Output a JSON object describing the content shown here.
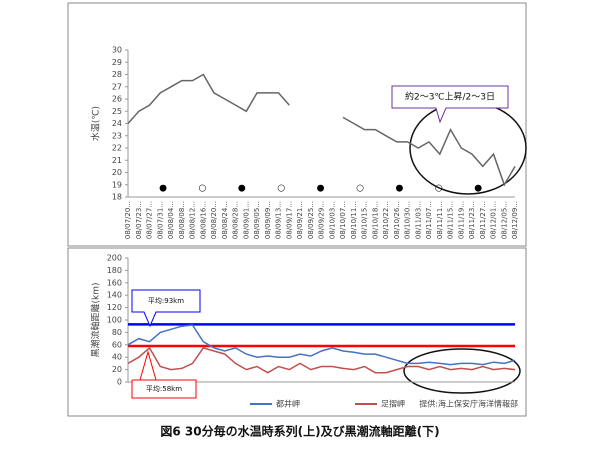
{
  "chart_data": [
    {
      "type": "line",
      "y_label": "水温(℃)",
      "categories": [
        "08/07/20...",
        "08/07/23...",
        "08/07/27...",
        "08/07/31...",
        "08/08/04...",
        "08/08/08...",
        "08/08/12...",
        "08/08/16...",
        "08/08/20...",
        "08/08/24...",
        "08/08/28...",
        "08/09/01...",
        "08/09/05...",
        "08/09/09...",
        "08/09/13...",
        "08/09/17...",
        "08/09/21...",
        "08/09/25...",
        "08/09/29...",
        "08/10/03...",
        "08/10/07...",
        "08/10/11...",
        "08/10/15...",
        "08/10/18...",
        "08/10/22...",
        "08/10/26...",
        "08/10/30...",
        "08/11/03...",
        "08/11/07...",
        "08/11/11...",
        "08/11/15...",
        "08/11/19...",
        "08/11/23...",
        "08/11/27...",
        "08/12/01...",
        "08/12/05...",
        "08/12/09..."
      ],
      "series": [
        {
          "color": "#666666",
          "values": [
            24,
            25,
            25.5,
            26.5,
            27,
            27.5,
            27.5,
            28,
            26.5,
            26,
            25.5,
            25,
            26.5,
            26.5,
            26.5,
            25.5,
            null,
            null,
            null,
            null,
            24.5,
            24,
            23.5,
            23.5,
            23,
            22.5,
            22.5,
            22,
            22.5,
            21.5,
            23.5,
            22,
            21.5,
            20.5,
            21.5,
            19,
            20.5
          ]
        }
      ],
      "ylim": [
        18,
        30
      ],
      "yticks": [
        18,
        19,
        20,
        21,
        22,
        23,
        24,
        25,
        26,
        27,
        28,
        29,
        30
      ],
      "moon_markers": [
        "●",
        "○",
        "●",
        "○",
        "●",
        "○",
        "●",
        "○",
        "●"
      ],
      "annotation": "約2～3℃上昇/2～3日"
    },
    {
      "type": "line",
      "y_label": "黒潮流軸距離(km)",
      "series": [
        {
          "name": "都井岬",
          "color": "#4472c4",
          "values": [
            60,
            70,
            65,
            80,
            85,
            90,
            92,
            65,
            55,
            50,
            55,
            45,
            40,
            42,
            40,
            40,
            45,
            42,
            50,
            55,
            50,
            48,
            45,
            45,
            40,
            35,
            30,
            30,
            32,
            30,
            28,
            30,
            30,
            28,
            32,
            30,
            35
          ]
        },
        {
          "name": "足摺岬",
          "color": "#c0504d",
          "values": [
            30,
            40,
            55,
            25,
            20,
            22,
            30,
            55,
            50,
            45,
            30,
            20,
            25,
            15,
            25,
            20,
            30,
            20,
            25,
            25,
            22,
            20,
            25,
            15,
            15,
            20,
            25,
            25,
            20,
            25,
            20,
            22,
            20,
            25,
            20,
            22,
            20
          ]
        }
      ],
      "mean_lines": [
        {
          "value": 93,
          "label": "平均:93km",
          "color": "#0000ff"
        },
        {
          "value": 58,
          "label": "平均:58km",
          "color": "#ff0000"
        }
      ],
      "ylim": [
        0,
        200
      ],
      "yticks": [
        0,
        20,
        40,
        60,
        80,
        100,
        120,
        140,
        160,
        180,
        200
      ],
      "source": "提供:海上保安庁海洋情報部"
    }
  ],
  "caption": "図6  30分毎の水温時系列(上)及び黒潮流軸距離(下)"
}
